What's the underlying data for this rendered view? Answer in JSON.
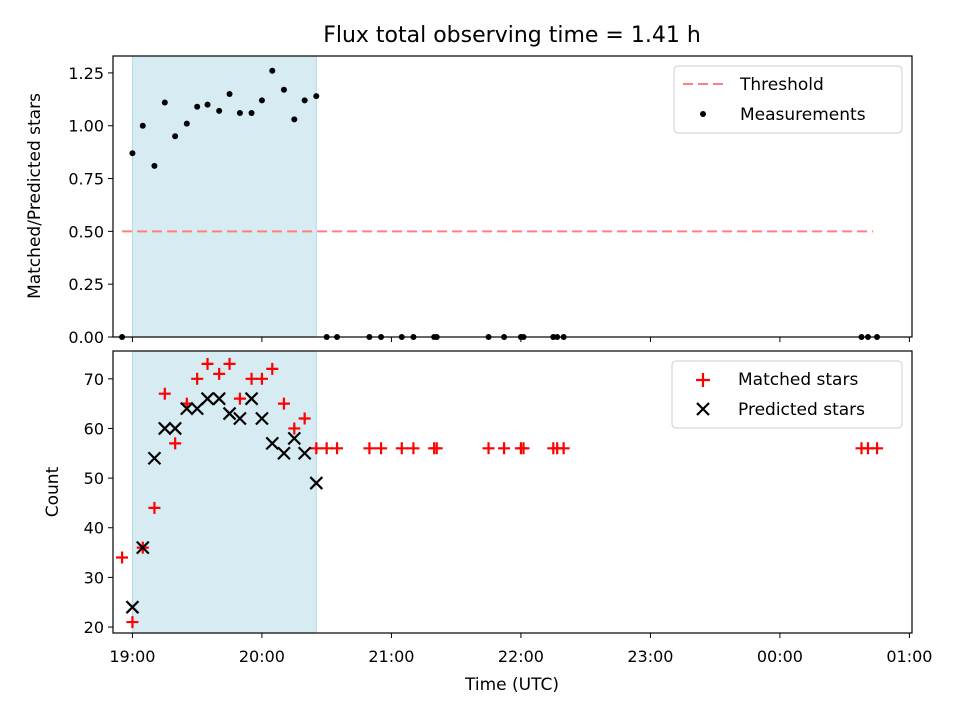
{
  "title": "Flux total observing time = 1.41 h",
  "chart_data": [
    {
      "type": "scatter",
      "ylabel": "Matched/Predicted stars",
      "xlabel": "",
      "xlim": [
        18.85,
        25.02
      ],
      "ylim": [
        0,
        1.33
      ],
      "yticks": [
        0,
        0.25,
        0.5,
        0.75,
        1.0,
        1.25
      ],
      "ytick_labels": [
        "0.00",
        "0.25",
        "0.50",
        "0.75",
        "1.00",
        "1.25"
      ],
      "span": [
        19.0,
        20.42
      ],
      "threshold": {
        "name": "Threshold",
        "value": 0.5,
        "x": [
          18.92,
          24.72
        ],
        "color": "#ff7f7f"
      },
      "series": [
        {
          "name": "Measurements",
          "color": "#000000",
          "x": [
            18.92,
            19.0,
            19.08,
            19.17,
            19.25,
            19.33,
            19.42,
            19.5,
            19.58,
            19.67,
            19.75,
            19.83,
            19.92,
            20.0,
            20.08,
            20.17,
            20.25,
            20.33,
            20.42,
            20.5,
            20.58,
            20.83,
            20.92,
            21.08,
            21.17,
            21.33,
            21.35,
            21.75,
            21.87,
            22.0,
            22.02,
            22.25,
            22.28,
            22.33,
            24.63,
            24.68,
            24.75
          ],
          "y": [
            0.0,
            0.87,
            1.0,
            0.81,
            1.11,
            0.95,
            1.01,
            1.09,
            1.1,
            1.07,
            1.15,
            1.06,
            1.06,
            1.12,
            1.26,
            1.17,
            1.03,
            1.12,
            1.14,
            0.0,
            0.0,
            0.0,
            0.0,
            0.0,
            0.0,
            0.0,
            0.0,
            0.0,
            0.0,
            0.0,
            0.0,
            0.0,
            0.0,
            0.0,
            0.0,
            0.0,
            0.0
          ]
        }
      ],
      "legend": "top-right"
    },
    {
      "type": "scatter",
      "ylabel": "Count",
      "xlabel": "Time (UTC)",
      "xlim": [
        18.85,
        25.02
      ],
      "ylim": [
        18.8,
        75.6
      ],
      "yticks": [
        20,
        30,
        40,
        50,
        60,
        70
      ],
      "ytick_labels": [
        "20",
        "30",
        "40",
        "50",
        "60",
        "70"
      ],
      "xticks": [
        19,
        20,
        21,
        22,
        23,
        24,
        25
      ],
      "xtick_labels": [
        "19:00",
        "20:00",
        "21:00",
        "22:00",
        "23:00",
        "00:00",
        "01:00"
      ],
      "span": [
        19.0,
        20.42
      ],
      "series": [
        {
          "name": "Matched stars",
          "color": "#ff0000",
          "marker": "plus",
          "x": [
            18.92,
            19.0,
            19.08,
            19.17,
            19.25,
            19.33,
            19.42,
            19.5,
            19.58,
            19.67,
            19.75,
            19.83,
            19.92,
            20.0,
            20.08,
            20.17,
            20.25,
            20.33,
            20.42,
            20.5,
            20.58,
            20.83,
            20.92,
            21.08,
            21.17,
            21.33,
            21.35,
            21.75,
            21.87,
            22.0,
            22.02,
            22.25,
            22.28,
            22.33,
            24.63,
            24.68,
            24.75
          ],
          "y": [
            34,
            21,
            36,
            44,
            67,
            57,
            65,
            70,
            73,
            71,
            73,
            66,
            70,
            70,
            72,
            65,
            60,
            62,
            56,
            56,
            56,
            56,
            56,
            56,
            56,
            56,
            56,
            56,
            56,
            56,
            56,
            56,
            56,
            56,
            56,
            56,
            56
          ]
        },
        {
          "name": "Predicted stars",
          "color": "#000000",
          "marker": "x",
          "x": [
            19.0,
            19.08,
            19.17,
            19.25,
            19.33,
            19.42,
            19.5,
            19.58,
            19.67,
            19.75,
            19.83,
            19.92,
            20.0,
            20.08,
            20.17,
            20.25,
            20.33,
            20.42
          ],
          "y": [
            24,
            36,
            54,
            60,
            60,
            64,
            64,
            66,
            66,
            63,
            62,
            66,
            62,
            57,
            55,
            58,
            55,
            49
          ]
        }
      ],
      "legend": "top-right"
    }
  ]
}
